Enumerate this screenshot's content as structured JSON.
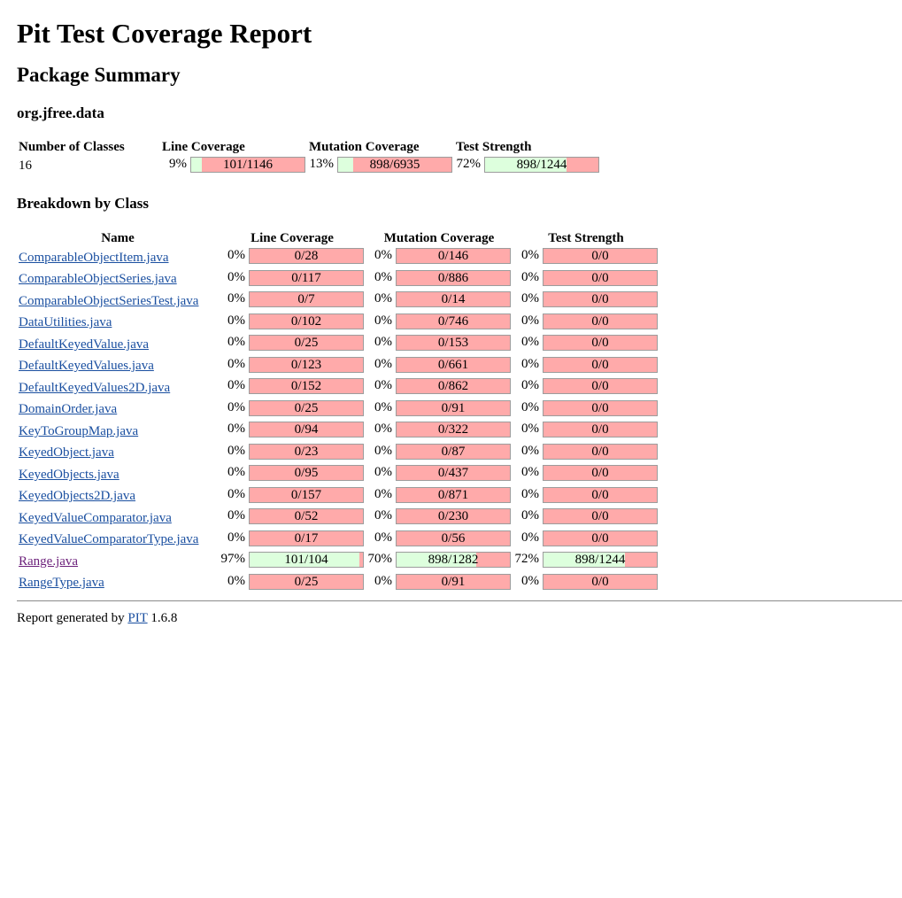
{
  "title": "Pit Test Coverage Report",
  "summary_title": "Package Summary",
  "package_name": "org.jfree.data",
  "summary": {
    "headers": [
      "Number of Classes",
      "Line Coverage",
      "Mutation Coverage",
      "Test Strength"
    ],
    "classes": "16",
    "line": {
      "pct": "9%",
      "text": "101/1146",
      "fill": 0.09
    },
    "mutation": {
      "pct": "13%",
      "text": "898/6935",
      "fill": 0.13
    },
    "strength": {
      "pct": "72%",
      "text": "898/1244",
      "fill": 0.72
    }
  },
  "breakdown_title": "Breakdown by Class",
  "breakdown_headers": [
    "Name",
    "Line Coverage",
    "Mutation Coverage",
    "Test Strength"
  ],
  "rows": [
    {
      "name": "ComparableObjectItem.java",
      "visited": false,
      "line_pct": "0%",
      "line": "0/28",
      "line_fill": 0,
      "mut_pct": "0%",
      "mut": "0/146",
      "mut_fill": 0,
      "str_pct": "0%",
      "str": "0/0",
      "str_fill": 0
    },
    {
      "name": "ComparableObjectSeries.java",
      "visited": false,
      "line_pct": "0%",
      "line": "0/117",
      "line_fill": 0,
      "mut_pct": "0%",
      "mut": "0/886",
      "mut_fill": 0,
      "str_pct": "0%",
      "str": "0/0",
      "str_fill": 0
    },
    {
      "name": "ComparableObjectSeriesTest.java",
      "visited": false,
      "line_pct": "0%",
      "line": "0/7",
      "line_fill": 0,
      "mut_pct": "0%",
      "mut": "0/14",
      "mut_fill": 0,
      "str_pct": "0%",
      "str": "0/0",
      "str_fill": 0
    },
    {
      "name": "DataUtilities.java",
      "visited": false,
      "line_pct": "0%",
      "line": "0/102",
      "line_fill": 0,
      "mut_pct": "0%",
      "mut": "0/746",
      "mut_fill": 0,
      "str_pct": "0%",
      "str": "0/0",
      "str_fill": 0
    },
    {
      "name": "DefaultKeyedValue.java",
      "visited": false,
      "line_pct": "0%",
      "line": "0/25",
      "line_fill": 0,
      "mut_pct": "0%",
      "mut": "0/153",
      "mut_fill": 0,
      "str_pct": "0%",
      "str": "0/0",
      "str_fill": 0
    },
    {
      "name": "DefaultKeyedValues.java",
      "visited": false,
      "line_pct": "0%",
      "line": "0/123",
      "line_fill": 0,
      "mut_pct": "0%",
      "mut": "0/661",
      "mut_fill": 0,
      "str_pct": "0%",
      "str": "0/0",
      "str_fill": 0
    },
    {
      "name": "DefaultKeyedValues2D.java",
      "visited": false,
      "line_pct": "0%",
      "line": "0/152",
      "line_fill": 0,
      "mut_pct": "0%",
      "mut": "0/862",
      "mut_fill": 0,
      "str_pct": "0%",
      "str": "0/0",
      "str_fill": 0
    },
    {
      "name": "DomainOrder.java",
      "visited": false,
      "line_pct": "0%",
      "line": "0/25",
      "line_fill": 0,
      "mut_pct": "0%",
      "mut": "0/91",
      "mut_fill": 0,
      "str_pct": "0%",
      "str": "0/0",
      "str_fill": 0
    },
    {
      "name": "KeyToGroupMap.java",
      "visited": false,
      "line_pct": "0%",
      "line": "0/94",
      "line_fill": 0,
      "mut_pct": "0%",
      "mut": "0/322",
      "mut_fill": 0,
      "str_pct": "0%",
      "str": "0/0",
      "str_fill": 0
    },
    {
      "name": "KeyedObject.java",
      "visited": false,
      "line_pct": "0%",
      "line": "0/23",
      "line_fill": 0,
      "mut_pct": "0%",
      "mut": "0/87",
      "mut_fill": 0,
      "str_pct": "0%",
      "str": "0/0",
      "str_fill": 0
    },
    {
      "name": "KeyedObjects.java",
      "visited": false,
      "line_pct": "0%",
      "line": "0/95",
      "line_fill": 0,
      "mut_pct": "0%",
      "mut": "0/437",
      "mut_fill": 0,
      "str_pct": "0%",
      "str": "0/0",
      "str_fill": 0
    },
    {
      "name": "KeyedObjects2D.java",
      "visited": false,
      "line_pct": "0%",
      "line": "0/157",
      "line_fill": 0,
      "mut_pct": "0%",
      "mut": "0/871",
      "mut_fill": 0,
      "str_pct": "0%",
      "str": "0/0",
      "str_fill": 0
    },
    {
      "name": "KeyedValueComparator.java",
      "visited": false,
      "line_pct": "0%",
      "line": "0/52",
      "line_fill": 0,
      "mut_pct": "0%",
      "mut": "0/230",
      "mut_fill": 0,
      "str_pct": "0%",
      "str": "0/0",
      "str_fill": 0
    },
    {
      "name": "KeyedValueComparatorType.java",
      "visited": false,
      "line_pct": "0%",
      "line": "0/17",
      "line_fill": 0,
      "mut_pct": "0%",
      "mut": "0/56",
      "mut_fill": 0,
      "str_pct": "0%",
      "str": "0/0",
      "str_fill": 0
    },
    {
      "name": "Range.java",
      "visited": true,
      "line_pct": "97%",
      "line": "101/104",
      "line_fill": 0.97,
      "mut_pct": "70%",
      "mut": "898/1282",
      "mut_fill": 0.7,
      "str_pct": "72%",
      "str": "898/1244",
      "str_fill": 0.72
    },
    {
      "name": "RangeType.java",
      "visited": false,
      "line_pct": "0%",
      "line": "0/25",
      "line_fill": 0,
      "mut_pct": "0%",
      "mut": "0/91",
      "mut_fill": 0,
      "str_pct": "0%",
      "str": "0/0",
      "str_fill": 0
    }
  ],
  "footer": {
    "prefix": "Report generated by",
    "link": "PIT",
    "version": "1.6.8"
  },
  "colors": {
    "covered": "#ddffdd",
    "uncovered": "#ffaaaa",
    "link": "#1a4fa0",
    "visited_link": "#6b1f7a"
  }
}
